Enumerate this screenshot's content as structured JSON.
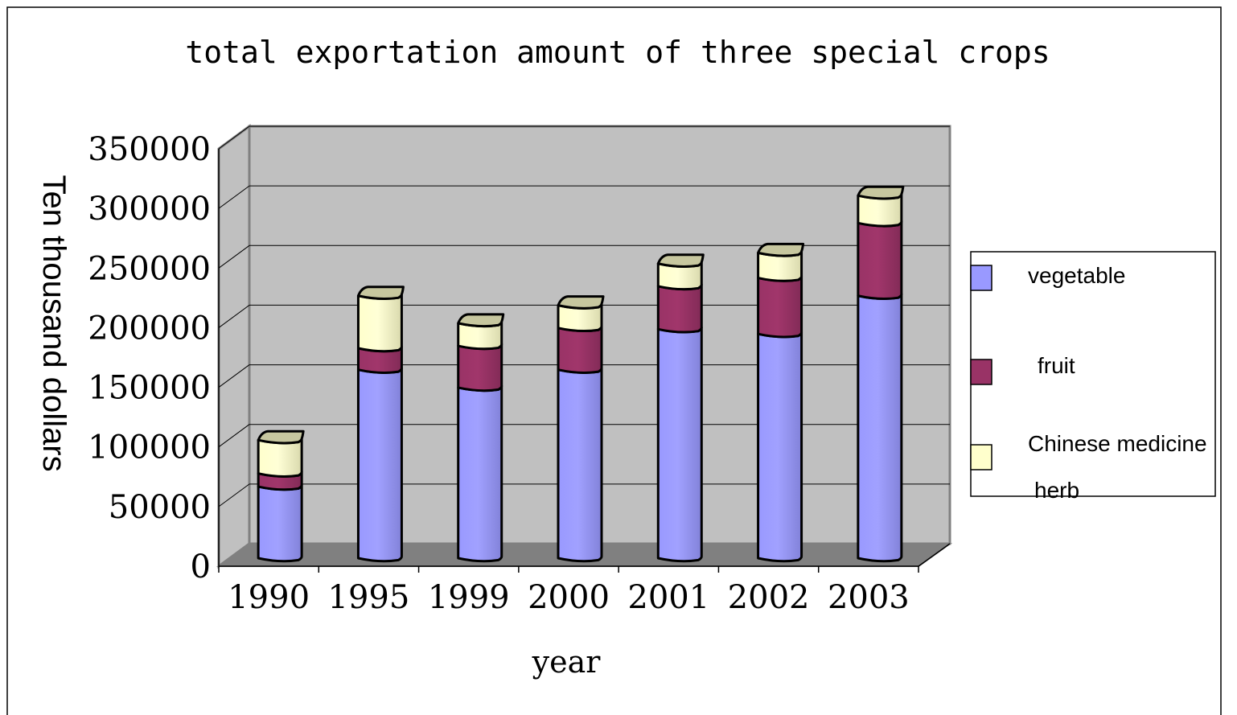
{
  "chart_data": {
    "type": "bar",
    "stacked": true,
    "three_d": true,
    "title": "total exportation amount of three special crops",
    "xlabel": "year",
    "ylabel": "Ten thousand dollars",
    "categories": [
      "1990",
      "1995",
      "1999",
      "2000",
      "2001",
      "2002",
      "2003"
    ],
    "series": [
      {
        "name": "vegetable",
        "color": "#9999ff",
        "values": [
          60000,
          158000,
          143000,
          158000,
          192000,
          188000,
          220000
        ]
      },
      {
        "name": "fruit",
        "color": "#993366",
        "values": [
          11000,
          18000,
          35000,
          35000,
          36000,
          47000,
          61000
        ]
      },
      {
        "name": "Chinese medicine herb",
        "name_lines": [
          "Chinese medicine",
          "herb"
        ],
        "color": "#ffffcc",
        "values": [
          28000,
          44000,
          19000,
          19000,
          19000,
          21000,
          23000
        ]
      }
    ],
    "ylim": [
      0,
      350000
    ],
    "yticks": [
      "0",
      "50000",
      "100000",
      "150000",
      "200000",
      "250000",
      "300000",
      "350000"
    ],
    "grid": true,
    "legend_position": "right",
    "background": "#c0c0c0",
    "floor": "#808080"
  }
}
